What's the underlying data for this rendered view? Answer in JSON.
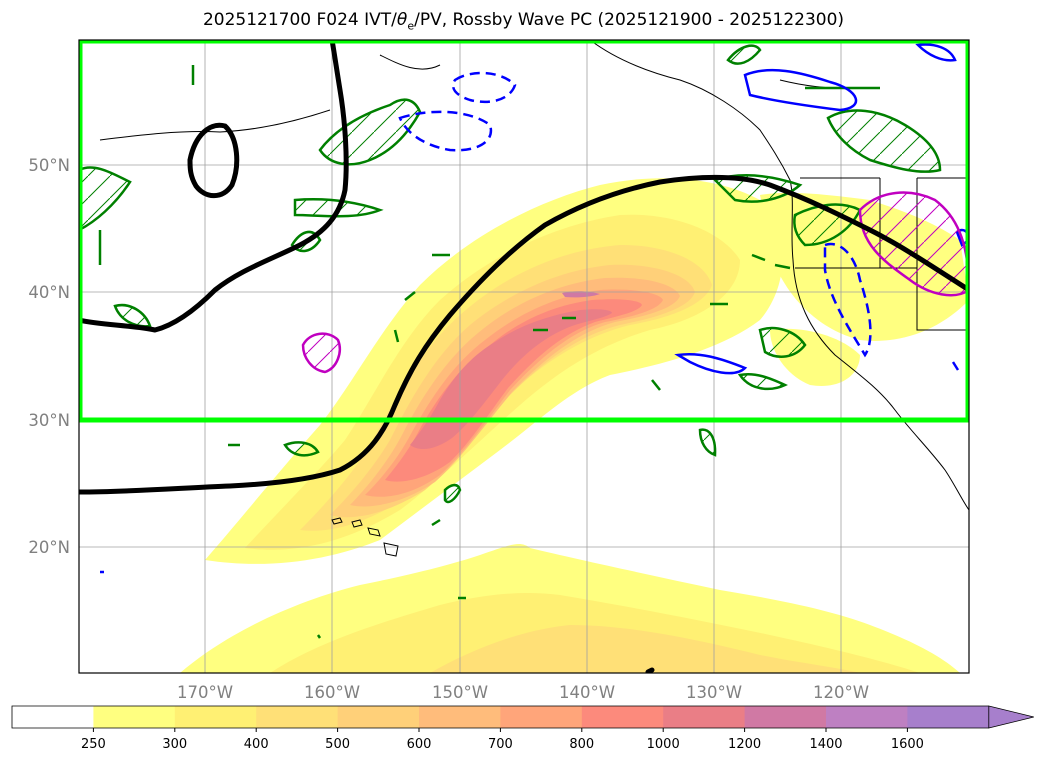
{
  "title": {
    "prefix": "2025121700 F024 IVT/",
    "theta": "θ",
    "theta_sub": "e",
    "suffix": "/PV, Rossby Wave PC (2025121900 - 2025122300)"
  },
  "map": {
    "lat_labels": [
      "50°N",
      "40°N",
      "30°N",
      "20°N"
    ],
    "lon_labels": [
      "170°W",
      "160°W",
      "150°W",
      "140°W",
      "130°W",
      "120°W"
    ]
  },
  "colorbar": {
    "levels": [
      "250",
      "300",
      "400",
      "500",
      "600",
      "700",
      "800",
      "1000",
      "1200",
      "1400",
      "1600"
    ],
    "colors": [
      "#ffffff",
      "#ffff80",
      "#fff073",
      "#ffe077",
      "#ffd079",
      "#ffbc7b",
      "#ffa57a",
      "#fc8a7c",
      "#ea7e86",
      "#d079a4",
      "#be80c2",
      "#a77fcc"
    ],
    "extend": "max"
  },
  "colors": {
    "box": "#00ff00",
    "pv_positive": "#008000",
    "pv_negative": "#0000ff",
    "theta_e": "#c000c0",
    "rossby_wave": "#000000",
    "grid": "#a0a0a0"
  }
}
